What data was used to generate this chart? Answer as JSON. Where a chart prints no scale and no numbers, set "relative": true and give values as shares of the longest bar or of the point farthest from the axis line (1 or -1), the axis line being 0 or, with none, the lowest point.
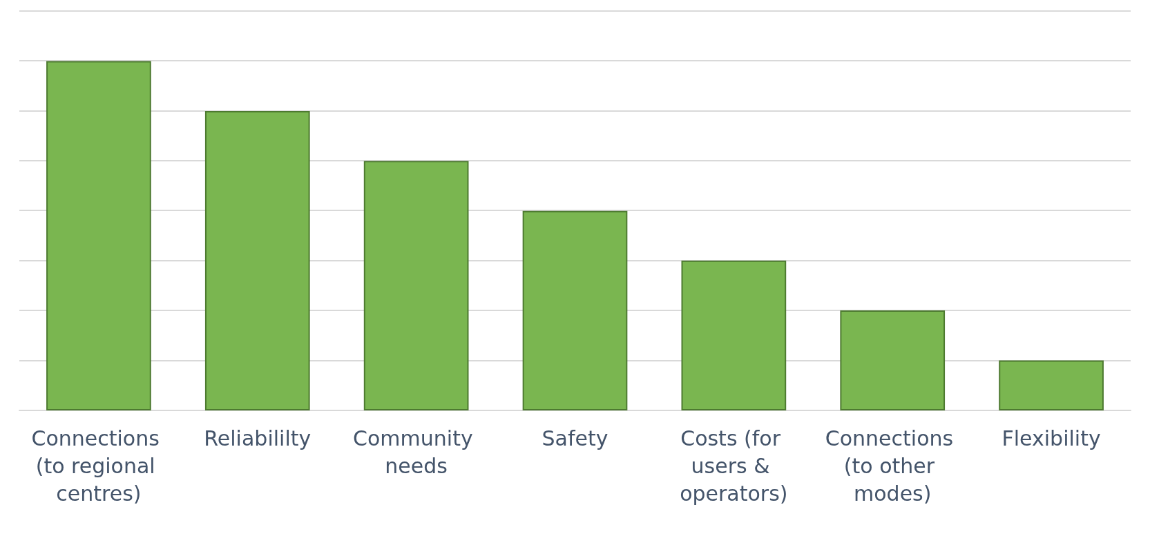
{
  "chart_data": {
    "type": "bar",
    "relative": true,
    "categories": [
      "Connections (to regional centres)",
      "Reliabililty",
      "Community needs",
      "Safety",
      "Costs (for users & operators)",
      "Connections (to other modes)",
      "Flexibility"
    ],
    "values": [
      1,
      0.857,
      0.714,
      0.571,
      0.429,
      0.286,
      0.143
    ],
    "color": "#7ab650",
    "grid": "y"
  }
}
